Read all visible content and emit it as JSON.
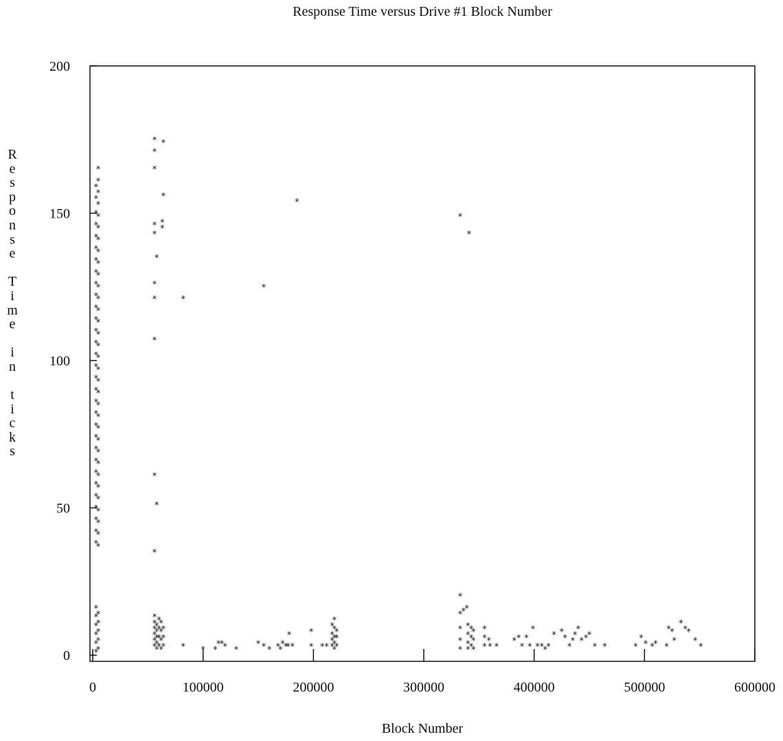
{
  "chart_data": {
    "type": "scatter",
    "title": "Response Time versus Drive #1 Block Number",
    "xlabel": "Block Number",
    "ylabel": "Response Time in ticks",
    "xlim": [
      0,
      600000
    ],
    "ylim": [
      0,
      200
    ],
    "xticks": [
      0,
      100000,
      200000,
      300000,
      400000,
      500000,
      600000
    ],
    "yticks": [
      0,
      50,
      100,
      150,
      200
    ],
    "marker": "*",
    "grid": false,
    "series": [
      {
        "points": [
          [
            3000,
            159
          ],
          [
            3000,
            155
          ],
          [
            3000,
            150
          ],
          [
            3000,
            146
          ],
          [
            3000,
            142
          ],
          [
            3000,
            138
          ],
          [
            3000,
            134
          ],
          [
            3000,
            130
          ],
          [
            3000,
            126
          ],
          [
            3000,
            122
          ],
          [
            3000,
            118
          ],
          [
            3000,
            114
          ],
          [
            3000,
            110
          ],
          [
            3000,
            106
          ],
          [
            3000,
            102
          ],
          [
            3000,
            98
          ],
          [
            3000,
            94
          ],
          [
            3000,
            90
          ],
          [
            3000,
            86
          ],
          [
            3000,
            82
          ],
          [
            3000,
            78
          ],
          [
            3000,
            74
          ],
          [
            3000,
            70
          ],
          [
            3000,
            66
          ],
          [
            3000,
            62
          ],
          [
            3000,
            58
          ],
          [
            3000,
            54
          ],
          [
            3000,
            50
          ],
          [
            3000,
            46
          ],
          [
            3000,
            42
          ],
          [
            3000,
            38
          ],
          [
            5000,
            165
          ],
          [
            5000,
            161
          ],
          [
            5000,
            157
          ],
          [
            5000,
            153
          ],
          [
            5000,
            149
          ],
          [
            5000,
            145
          ],
          [
            5000,
            141
          ],
          [
            5000,
            137
          ],
          [
            5000,
            133
          ],
          [
            5000,
            129
          ],
          [
            5000,
            125
          ],
          [
            5000,
            121
          ],
          [
            5000,
            117
          ],
          [
            5000,
            113
          ],
          [
            5000,
            109
          ],
          [
            5000,
            105
          ],
          [
            5000,
            101
          ],
          [
            5000,
            97
          ],
          [
            5000,
            93
          ],
          [
            5000,
            89
          ],
          [
            5000,
            85
          ],
          [
            5000,
            81
          ],
          [
            5000,
            77
          ],
          [
            5000,
            73
          ],
          [
            5000,
            69
          ],
          [
            5000,
            65
          ],
          [
            5000,
            61
          ],
          [
            5000,
            57
          ],
          [
            5000,
            53
          ],
          [
            5000,
            49
          ],
          [
            5000,
            45
          ],
          [
            5000,
            41
          ],
          [
            5000,
            37
          ],
          [
            3000,
            16
          ],
          [
            3000,
            13
          ],
          [
            3000,
            10
          ],
          [
            3000,
            7
          ],
          [
            3000,
            4
          ],
          [
            3000,
            1
          ],
          [
            5000,
            14
          ],
          [
            5000,
            11
          ],
          [
            5000,
            8
          ],
          [
            5000,
            5
          ],
          [
            5000,
            2
          ],
          [
            56000,
            175
          ],
          [
            56000,
            171
          ],
          [
            56000,
            165
          ],
          [
            64000,
            174
          ],
          [
            56000,
            146
          ],
          [
            56000,
            143
          ],
          [
            63000,
            147
          ],
          [
            63000,
            145
          ],
          [
            64000,
            156
          ],
          [
            58000,
            135
          ],
          [
            56000,
            126
          ],
          [
            56000,
            121
          ],
          [
            82000,
            121
          ],
          [
            56000,
            107
          ],
          [
            155000,
            125
          ],
          [
            185000,
            154
          ],
          [
            56000,
            61
          ],
          [
            58000,
            51
          ],
          [
            56000,
            35
          ],
          [
            56000,
            13
          ],
          [
            56000,
            11
          ],
          [
            56000,
            9
          ],
          [
            56000,
            7
          ],
          [
            56000,
            5
          ],
          [
            56000,
            3
          ],
          [
            58000,
            10
          ],
          [
            58000,
            8
          ],
          [
            58000,
            6
          ],
          [
            58000,
            4
          ],
          [
            58000,
            2
          ],
          [
            60000,
            12
          ],
          [
            60000,
            9
          ],
          [
            60000,
            6
          ],
          [
            60000,
            3
          ],
          [
            62000,
            11
          ],
          [
            62000,
            8
          ],
          [
            62000,
            5
          ],
          [
            62000,
            2
          ],
          [
            64000,
            9
          ],
          [
            64000,
            6
          ],
          [
            64000,
            3
          ],
          [
            82000,
            3
          ],
          [
            100000,
            2
          ],
          [
            111000,
            2
          ],
          [
            114000,
            4
          ],
          [
            117000,
            4
          ],
          [
            120000,
            3
          ],
          [
            130000,
            2
          ],
          [
            150000,
            4
          ],
          [
            155000,
            3
          ],
          [
            160000,
            2
          ],
          [
            168000,
            3
          ],
          [
            170000,
            2
          ],
          [
            172000,
            4
          ],
          [
            175000,
            3
          ],
          [
            177000,
            3
          ],
          [
            178000,
            7
          ],
          [
            181000,
            3
          ],
          [
            198000,
            8
          ],
          [
            198000,
            3
          ],
          [
            208000,
            3
          ],
          [
            212000,
            3
          ],
          [
            217000,
            10
          ],
          [
            217000,
            7
          ],
          [
            217000,
            5
          ],
          [
            217000,
            3
          ],
          [
            219000,
            12
          ],
          [
            219000,
            9
          ],
          [
            219000,
            6
          ],
          [
            219000,
            4
          ],
          [
            219000,
            2
          ],
          [
            221000,
            8
          ],
          [
            221000,
            6
          ],
          [
            221000,
            3
          ],
          [
            333000,
            20
          ],
          [
            333000,
            14
          ],
          [
            333000,
            9
          ],
          [
            333000,
            5
          ],
          [
            333000,
            2
          ],
          [
            336000,
            15
          ],
          [
            339000,
            16
          ],
          [
            340000,
            10
          ],
          [
            340000,
            7
          ],
          [
            340000,
            4
          ],
          [
            340000,
            2
          ],
          [
            343000,
            9
          ],
          [
            343000,
            6
          ],
          [
            343000,
            3
          ],
          [
            345000,
            8
          ],
          [
            345000,
            5
          ],
          [
            345000,
            2
          ],
          [
            333000,
            149
          ],
          [
            341000,
            143
          ],
          [
            355000,
            9
          ],
          [
            355000,
            6
          ],
          [
            355000,
            3
          ],
          [
            359000,
            5
          ],
          [
            360000,
            3
          ],
          [
            366000,
            3
          ],
          [
            382000,
            5
          ],
          [
            386000,
            6
          ],
          [
            389000,
            3
          ],
          [
            393000,
            6
          ],
          [
            396000,
            3
          ],
          [
            399000,
            9
          ],
          [
            403000,
            3
          ],
          [
            407000,
            3
          ],
          [
            410000,
            2
          ],
          [
            413000,
            3
          ],
          [
            418000,
            7
          ],
          [
            425000,
            8
          ],
          [
            428000,
            6
          ],
          [
            432000,
            3
          ],
          [
            435000,
            5
          ],
          [
            437000,
            7
          ],
          [
            440000,
            9
          ],
          [
            443000,
            5
          ],
          [
            447000,
            6
          ],
          [
            450000,
            7
          ],
          [
            455000,
            3
          ],
          [
            464000,
            3
          ],
          [
            492000,
            3
          ],
          [
            497000,
            6
          ],
          [
            501000,
            4
          ],
          [
            507000,
            3
          ],
          [
            510000,
            4
          ],
          [
            520000,
            3
          ],
          [
            522000,
            9
          ],
          [
            525000,
            8
          ],
          [
            527000,
            5
          ],
          [
            533000,
            11
          ],
          [
            537000,
            9
          ],
          [
            540000,
            8
          ],
          [
            546000,
            5
          ],
          [
            551000,
            3
          ]
        ]
      }
    ]
  }
}
